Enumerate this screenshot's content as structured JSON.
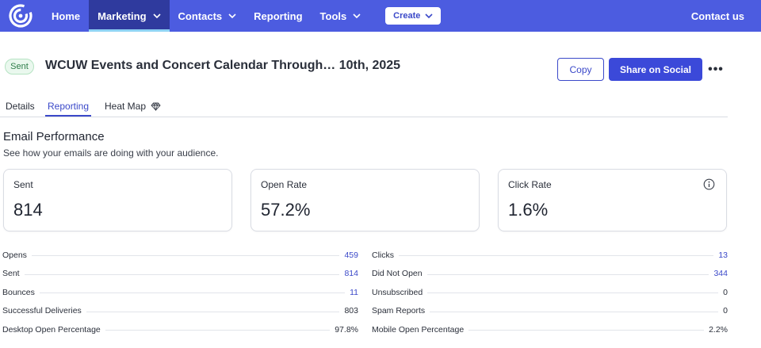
{
  "nav": {
    "items": [
      {
        "label": "Home",
        "dropdown": false,
        "active": false
      },
      {
        "label": "Marketing",
        "dropdown": true,
        "active": true
      },
      {
        "label": "Contacts",
        "dropdown": true,
        "active": false
      },
      {
        "label": "Reporting",
        "dropdown": false,
        "active": false
      },
      {
        "label": "Tools",
        "dropdown": true,
        "active": false
      }
    ],
    "create_label": "Create",
    "contact_label": "Contact us"
  },
  "header": {
    "status": "Sent",
    "title": "WCUW Events and Concert Calendar Through… 10th, 2025",
    "copy_label": "Copy",
    "share_label": "Share on Social",
    "more_label": "•••"
  },
  "tabs": [
    {
      "label": "Details",
      "active": false
    },
    {
      "label": "Reporting",
      "active": true
    },
    {
      "label": "Heat Map",
      "active": false,
      "icon": "diamond-icon"
    }
  ],
  "section": {
    "title": "Email Performance",
    "subtitle": "See how your emails are doing with your audience."
  },
  "cards": [
    {
      "label": "Sent",
      "value": "814"
    },
    {
      "label": "Open Rate",
      "value": "57.2%"
    },
    {
      "label": "Click Rate",
      "value": "1.6%",
      "icon": "info-icon"
    }
  ],
  "stats_left": [
    {
      "label": "Opens",
      "value": "459",
      "link": true
    },
    {
      "label": "Sent",
      "value": "814",
      "link": true
    },
    {
      "label": "Bounces",
      "value": "11",
      "link": true
    },
    {
      "label": "Successful Deliveries",
      "value": "803",
      "link": false
    },
    {
      "label": "Desktop Open Percentage",
      "value": "97.8%",
      "link": false
    }
  ],
  "stats_right": [
    {
      "label": "Clicks",
      "value": "13",
      "link": true
    },
    {
      "label": "Did Not Open",
      "value": "344",
      "link": true
    },
    {
      "label": "Unsubscribed",
      "value": "0",
      "link": false
    },
    {
      "label": "Spam Reports",
      "value": "0",
      "link": false
    },
    {
      "label": "Mobile Open Percentage",
      "value": "2.2%",
      "link": false
    }
  ],
  "colors": {
    "nav_bg": "#4c5ce0",
    "nav_active": "#2f3a9e",
    "accent": "#3b49c9",
    "sent_badge": "#2e7d4a"
  }
}
